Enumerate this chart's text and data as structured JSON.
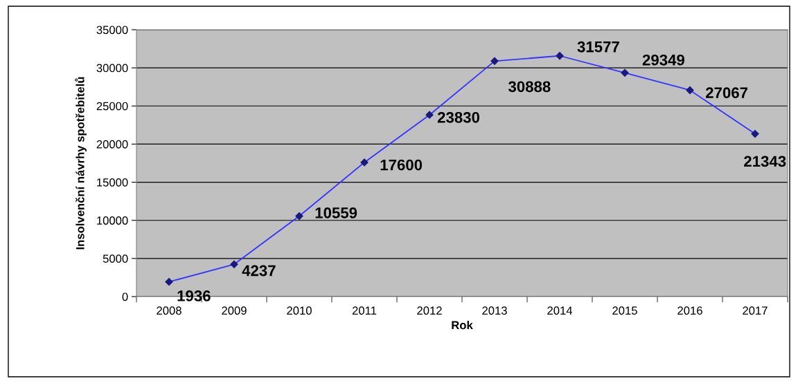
{
  "chart_data": {
    "type": "line",
    "xlabel": "Rok",
    "ylabel": "Insolvenční návrhy spotřebitelů",
    "categories": [
      "2008",
      "2009",
      "2010",
      "2011",
      "2012",
      "2013",
      "2014",
      "2015",
      "2016",
      "2017"
    ],
    "series": [
      {
        "color": "#3333ff",
        "values": [
          1936,
          4237,
          10559,
          17600,
          23830,
          30888,
          31577,
          29349,
          27067,
          21343
        ]
      }
    ],
    "marker": "diamond",
    "line_style": "solid",
    "ylim": [
      0,
      35000
    ],
    "yticks": [
      0,
      5000,
      10000,
      15000,
      20000,
      25000,
      30000,
      35000
    ],
    "grid": "y",
    "data_labels": true,
    "legend": false
  }
}
